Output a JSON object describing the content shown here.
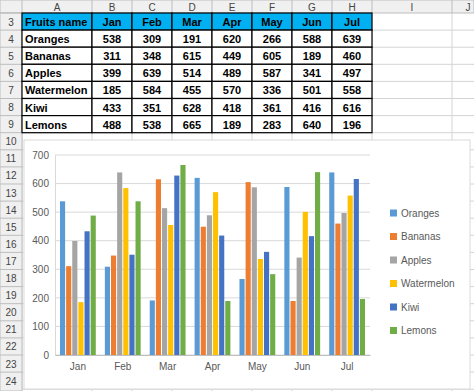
{
  "spreadsheet": {
    "columns": [
      "A",
      "B",
      "C",
      "D",
      "E",
      "F",
      "G",
      "H",
      "I",
      "J"
    ],
    "rows": [
      3,
      4,
      5,
      6,
      7,
      8,
      9,
      10,
      11,
      12,
      13,
      14,
      15,
      16,
      17,
      18,
      19,
      20,
      21,
      22,
      23,
      24
    ],
    "header": "Fruits name"
  },
  "chart_data": {
    "type": "bar",
    "categories": [
      "Jan",
      "Feb",
      "Mar",
      "Apr",
      "May",
      "Jun",
      "Jul"
    ],
    "series": [
      {
        "name": "Oranges",
        "color": "#5b9bd5",
        "values": [
          538,
          309,
          191,
          620,
          266,
          588,
          639
        ]
      },
      {
        "name": "Bananas",
        "color": "#ed7d31",
        "values": [
          311,
          348,
          615,
          449,
          605,
          189,
          460
        ]
      },
      {
        "name": "Apples",
        "color": "#a5a5a5",
        "values": [
          399,
          639,
          514,
          489,
          587,
          341,
          497
        ]
      },
      {
        "name": "Watermelon",
        "color": "#ffc000",
        "values": [
          185,
          584,
          455,
          570,
          336,
          501,
          558
        ]
      },
      {
        "name": "Kiwi",
        "color": "#4472c4",
        "values": [
          433,
          351,
          628,
          418,
          361,
          416,
          616
        ]
      },
      {
        "name": "Lemons",
        "color": "#70ad47",
        "values": [
          488,
          538,
          665,
          189,
          283,
          640,
          196
        ]
      }
    ],
    "ylim": [
      0,
      700
    ],
    "yticks": [
      0,
      100,
      200,
      300,
      400,
      500,
      600,
      700
    ],
    "grid": true,
    "legend": "right"
  }
}
